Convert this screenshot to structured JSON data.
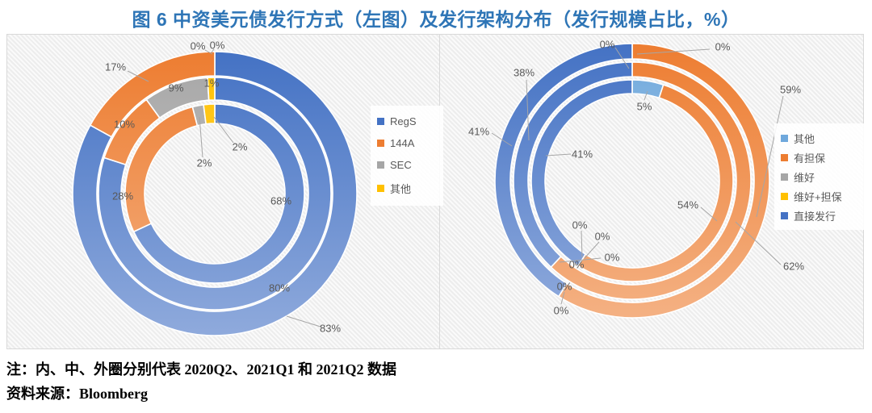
{
  "title": "图 6 中资美元债发行方式（左图）及发行架构分布（发行规模占比，%）",
  "note": "注：内、中、外圈分别代表 2020Q2、2021Q1 和 2021Q2 数据",
  "source": "资料来源：Bloomberg",
  "colors": {
    "title_text": "#2E75B6",
    "label_text": "#595959",
    "leader_line": "#A6A6A6",
    "panel_border": "#D9D9D9",
    "series": {
      "blue": {
        "base": "#4472C4",
        "light": "#8FAADC"
      },
      "orange": {
        "base": "#ED7D31",
        "light": "#F4B183"
      },
      "gray": {
        "base": "#A6A6A6",
        "light": "#D0CECE"
      },
      "yellow": {
        "base": "#FFC000",
        "light": "#FFD966"
      },
      "lightblue": {
        "base": "#6FA8DC",
        "light": "#BDD7EE"
      }
    }
  },
  "chart_data": [
    {
      "type": "donut",
      "panel": "left",
      "categories": [
        "RegS",
        "144A",
        "SEC",
        "其他"
      ],
      "category_colors": [
        "blue",
        "orange",
        "gray",
        "yellow"
      ],
      "rings": [
        {
          "period": "2020Q2",
          "position": "inner",
          "values": [
            68,
            28,
            2,
            2
          ]
        },
        {
          "period": "2021Q1",
          "position": "middle",
          "values": [
            80,
            10,
            9,
            1
          ]
        },
        {
          "period": "2021Q2",
          "position": "outer",
          "values": [
            83,
            17,
            0,
            0
          ]
        }
      ],
      "unit": "%",
      "legend_position": "right"
    },
    {
      "type": "donut",
      "panel": "right",
      "categories": [
        "其他",
        "有担保",
        "维好",
        "维好+担保",
        "直接发行"
      ],
      "category_colors": [
        "lightblue",
        "orange",
        "gray",
        "yellow",
        "blue"
      ],
      "rings": [
        {
          "period": "2020Q2",
          "position": "inner",
          "values": [
            5,
            54,
            0,
            0,
            41
          ]
        },
        {
          "period": "2021Q1",
          "position": "middle",
          "values": [
            0,
            62,
            0,
            0,
            38
          ]
        },
        {
          "period": "2021Q2",
          "position": "outer",
          "values": [
            0,
            59,
            0,
            0,
            41
          ]
        }
      ],
      "unit": "%",
      "legend_position": "right"
    }
  ]
}
